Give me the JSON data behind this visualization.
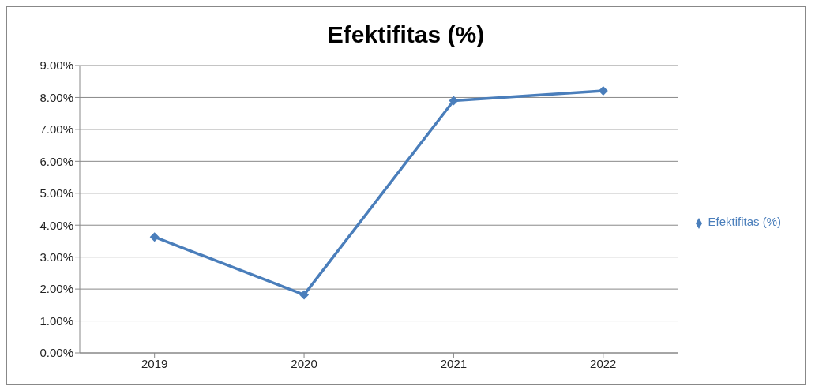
{
  "chart_data": {
    "type": "line",
    "title": "Efektifitas (%)",
    "categories": [
      "2019",
      "2020",
      "2021",
      "2022"
    ],
    "series": [
      {
        "name": "Efektifitas (%)",
        "color": "#4a7ebb",
        "values": [
          3.63,
          1.82,
          7.9,
          8.21
        ]
      }
    ],
    "ylim": [
      0,
      9
    ],
    "yticks": [
      {
        "value": 0,
        "label": "0.00%"
      },
      {
        "value": 1,
        "label": "1.00%"
      },
      {
        "value": 2,
        "label": "2.00%"
      },
      {
        "value": 3,
        "label": "3.00%"
      },
      {
        "value": 4,
        "label": "4.00%"
      },
      {
        "value": 5,
        "label": "5.00%"
      },
      {
        "value": 6,
        "label": "6.00%"
      },
      {
        "value": 7,
        "label": "7.00%"
      },
      {
        "value": 8,
        "label": "8.00%"
      },
      {
        "value": 9,
        "label": "9.00%"
      }
    ],
    "grid": "y",
    "legend": "right",
    "marker": "diamond",
    "line_style": "solid"
  }
}
